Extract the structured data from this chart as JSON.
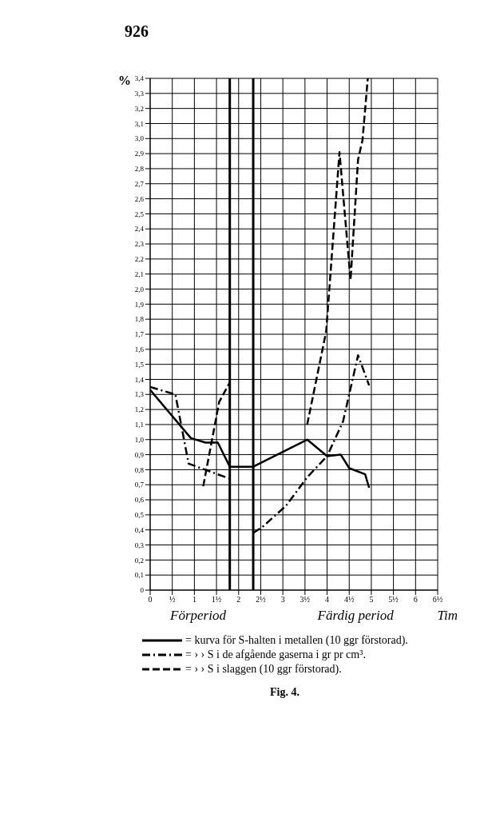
{
  "chart_data": {
    "type": "line",
    "ylabel": "%",
    "xlabel": "Tim",
    "annotations": [
      "926",
      "Förperiod",
      "Färdig period",
      "Fig. 4."
    ],
    "xlim": [
      0,
      6.5
    ],
    "xticks": [
      0,
      {
        "value": 0.5,
        "label": "½"
      },
      1,
      {
        "value": 1.5,
        "label": "1½"
      },
      2,
      {
        "value": 2.5,
        "label": "2½"
      },
      3,
      {
        "value": 3.5,
        "label": "3½"
      },
      4,
      {
        "value": 4.5,
        "label": "4½"
      },
      5,
      {
        "value": 5.5,
        "label": "5½"
      },
      6,
      {
        "value": 6.5,
        "label": "6½"
      }
    ],
    "ylim": [
      0,
      3.4
    ],
    "yticks": [
      0,
      {
        "value": 0.1,
        "label": "0,1"
      },
      {
        "value": 0.2,
        "label": "0,2"
      },
      {
        "value": 0.3,
        "label": "0,3"
      },
      {
        "value": 0.4,
        "label": "0,4"
      },
      {
        "value": 0.5,
        "label": "0,5"
      },
      {
        "value": 0.6,
        "label": "0,6"
      },
      {
        "value": 0.7,
        "label": "0,7"
      },
      {
        "value": 0.8,
        "label": "0,8"
      },
      {
        "value": 0.9,
        "label": "0,9"
      },
      {
        "value": 1.0,
        "label": "1,0"
      },
      {
        "value": 1.1,
        "label": "1,1"
      },
      {
        "value": 1.2,
        "label": "1,2"
      },
      {
        "value": 1.3,
        "label": "1,3"
      },
      {
        "value": 1.4,
        "label": "1,4"
      },
      {
        "value": 1.5,
        "label": "1,5"
      },
      {
        "value": 1.6,
        "label": "1,6"
      },
      {
        "value": 1.7,
        "label": "1,7"
      },
      {
        "value": 1.8,
        "label": "1,8"
      },
      {
        "value": 1.9,
        "label": "1,9"
      },
      {
        "value": 2.0,
        "label": "2,0"
      },
      {
        "value": 2.1,
        "label": "2,1"
      },
      {
        "value": 2.2,
        "label": "2,2"
      },
      {
        "value": 2.3,
        "label": "2,3"
      },
      {
        "value": 2.4,
        "label": "2,4"
      },
      {
        "value": 2.5,
        "label": "2,5"
      },
      {
        "value": 2.6,
        "label": "2,6"
      },
      {
        "value": 2.7,
        "label": "2,7"
      },
      {
        "value": 2.8,
        "label": "2,8"
      },
      {
        "value": 2.9,
        "label": "2,9"
      },
      {
        "value": 3.0,
        "label": "3,0"
      },
      {
        "value": 3.1,
        "label": "3,1"
      },
      {
        "value": 3.2,
        "label": "3,2"
      },
      {
        "value": 3.3,
        "label": "3,3"
      },
      {
        "value": 3.4,
        "label": "3,4"
      }
    ],
    "grid": true,
    "legend": "bottom",
    "marker": "none",
    "ref_lines": [
      {
        "axis": "x",
        "value": 1.8,
        "color": "#000000"
      },
      {
        "axis": "x",
        "value": 2.33,
        "color": "#000000"
      }
    ],
    "series": [
      {
        "name": "= kurva för S-halten i metallen (10 ggr förstorad).",
        "color": "#000000",
        "line_style": "solid",
        "x": [
          0,
          0.92,
          1.25,
          1.53,
          1.8,
          2.33,
          3.55,
          4.0,
          4.31,
          4.5,
          4.86,
          4.95
        ],
        "values": [
          1.33,
          1.01,
          0.98,
          0.98,
          0.82,
          0.82,
          1.0,
          0.89,
          0.9,
          0.81,
          0.77,
          0.68
        ]
      },
      {
        "name": "= ›   › S i de afgående gaserna i gr pr cm³.",
        "color": "#000000",
        "line_style": "dashdot",
        "x": [
          0,
          0.57,
          0.87,
          1.8,
          2.0,
          2.33,
          2.54,
          3.07,
          3.55,
          4.0,
          4.36,
          4.7,
          4.95
        ],
        "values": [
          1.35,
          1.3,
          0.84,
          0.74,
          null,
          0.38,
          0.42,
          0.56,
          0.75,
          0.89,
          1.12,
          1.56,
          1.36
        ]
      },
      {
        "name": "= ›   › S i slaggen (10 ggr förstorad).",
        "color": "#000000",
        "line_style": "dashed",
        "x": [
          1.2,
          1.56,
          1.8,
          2.5,
          3.55,
          3.98,
          4.28,
          4.53,
          4.7,
          4.8,
          4.92
        ],
        "values": [
          0.69,
          1.25,
          1.38,
          null,
          1.1,
          1.72,
          2.91,
          2.06,
          2.86,
          2.99,
          3.4
        ]
      }
    ]
  }
}
